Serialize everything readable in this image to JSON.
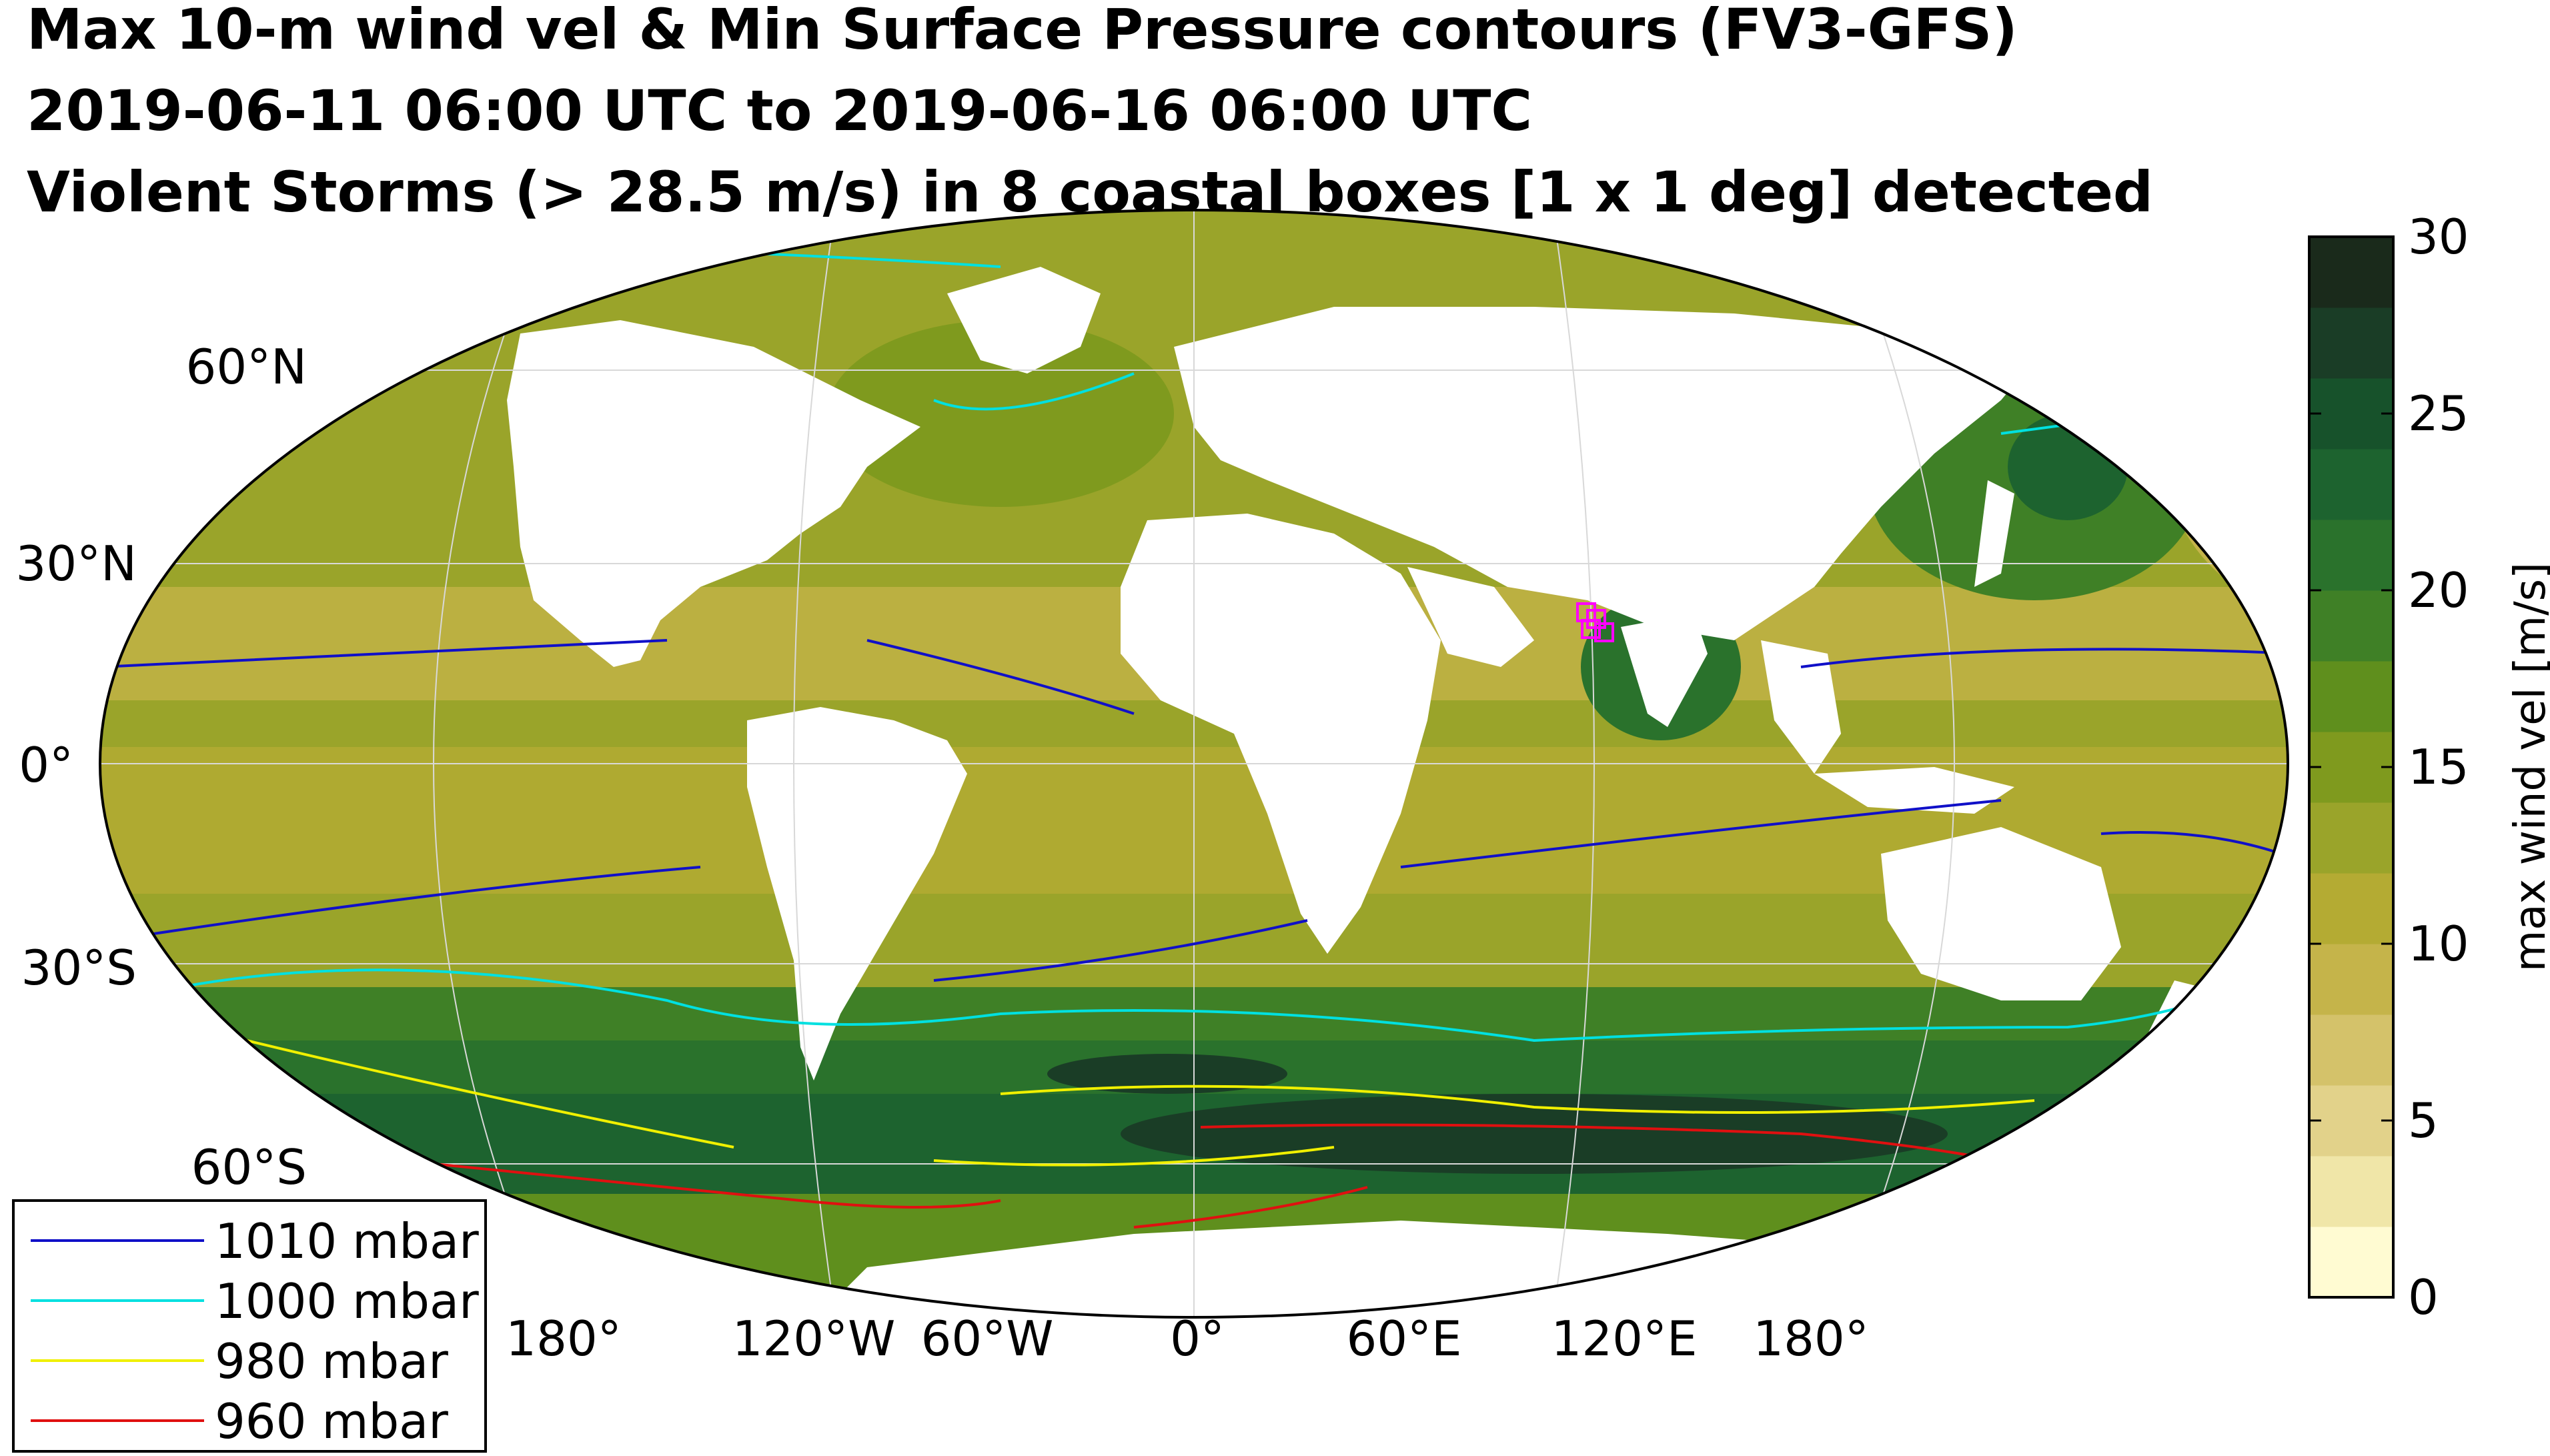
{
  "title": {
    "line1": "Max 10-m wind vel & Min Surface Pressure contours (FV3-GFS)",
    "line2": "2019-06-11 06:00 UTC to 2019-06-16 06:00 UTC",
    "line3": "Violent Storms (> 28.5 m/s) in 8 coastal boxes [1 x 1 deg] detected"
  },
  "map": {
    "projection": "Robinson",
    "ocean_fill_color": "#8faa2a",
    "land_fill_color": "#ffffff",
    "graticule_color": "#d8d8d8",
    "lat_labels": [
      "60°N",
      "30°N",
      "0°",
      "30°S",
      "60°S"
    ],
    "lon_labels": [
      "180°",
      "120°W",
      "60°W",
      "0°",
      "60°E",
      "120°E",
      "180°"
    ],
    "storm_marker_color": "#ff00ff"
  },
  "colorbar": {
    "title": "max wind vel [m/s]",
    "min": 0,
    "max": 30,
    "tick_labels": [
      "0",
      "5",
      "10",
      "15",
      "20",
      "25",
      "30"
    ],
    "colors": [
      "#fffbd2",
      "#f0e6a8",
      "#e2d28a",
      "#d4c26a",
      "#c5b44a",
      "#b4ab33",
      "#9aa42a",
      "#7f9a1e",
      "#5f8f1d",
      "#3f8026",
      "#2a722c",
      "#1d632f",
      "#17522b",
      "#1a3d26",
      "#1a2a1b"
    ]
  },
  "legend": {
    "items": [
      {
        "label": "1010 mbar",
        "color": "#1010c8"
      },
      {
        "label": "1000 mbar",
        "color": "#00e0e0"
      },
      {
        "label": "980 mbar",
        "color": "#f0f000"
      },
      {
        "label": "960 mbar",
        "color": "#e01010"
      }
    ]
  }
}
